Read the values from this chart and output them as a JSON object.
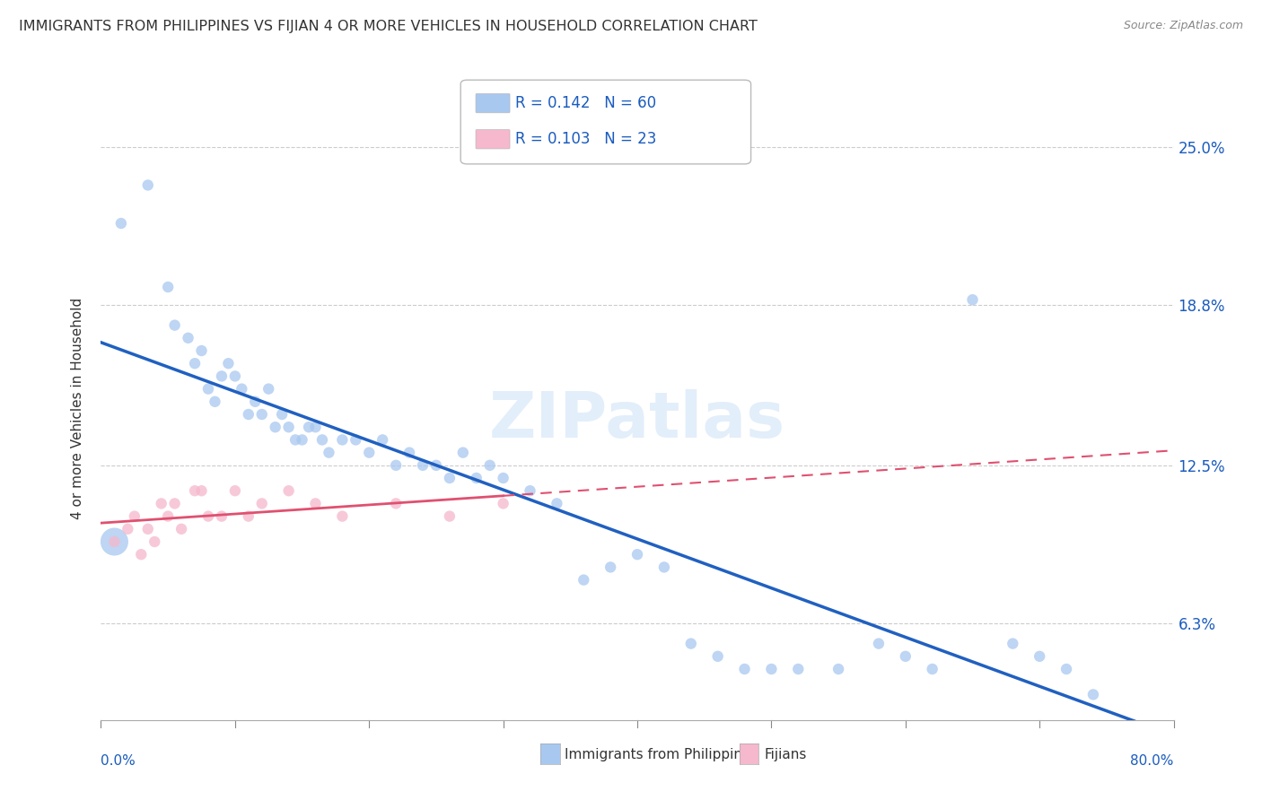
{
  "title": "IMMIGRANTS FROM PHILIPPINES VS FIJIAN 4 OR MORE VEHICLES IN HOUSEHOLD CORRELATION CHART",
  "source": "Source: ZipAtlas.com",
  "ylabel": "4 or more Vehicles in Household",
  "ytick_labels": [
    "6.3%",
    "12.5%",
    "18.8%",
    "25.0%"
  ],
  "ytick_values": [
    6.3,
    12.5,
    18.8,
    25.0
  ],
  "xlim": [
    0.0,
    80.0
  ],
  "ylim": [
    2.5,
    27.0
  ],
  "legend1_R": "0.142",
  "legend1_N": "60",
  "legend2_R": "0.103",
  "legend2_N": "23",
  "blue_color": "#a8c8f0",
  "pink_color": "#f5b8cc",
  "blue_line_color": "#2060c0",
  "pink_line_color": "#e05070",
  "watermark": "ZIPatlas",
  "phil_x": [
    1.5,
    3.5,
    5.0,
    5.5,
    6.5,
    7.0,
    7.5,
    8.0,
    8.5,
    9.0,
    9.5,
    10.0,
    10.5,
    11.0,
    11.5,
    12.0,
    12.5,
    13.0,
    13.5,
    14.0,
    14.5,
    15.0,
    15.5,
    16.0,
    16.5,
    17.0,
    18.0,
    19.0,
    20.0,
    21.0,
    22.0,
    23.0,
    24.0,
    25.0,
    26.0,
    27.0,
    28.0,
    29.0,
    30.0,
    32.0,
    34.0,
    36.0,
    38.0,
    40.0,
    42.0,
    44.0,
    46.0,
    48.0,
    50.0,
    52.0,
    55.0,
    58.0,
    60.0,
    62.0,
    65.0,
    68.0,
    70.0,
    72.0,
    74.0,
    1.0
  ],
  "phil_y": [
    22.0,
    23.5,
    19.5,
    18.0,
    17.5,
    16.5,
    17.0,
    15.5,
    15.0,
    16.0,
    16.5,
    16.0,
    15.5,
    14.5,
    15.0,
    14.5,
    15.5,
    14.0,
    14.5,
    14.0,
    13.5,
    13.5,
    14.0,
    14.0,
    13.5,
    13.0,
    13.5,
    13.5,
    13.0,
    13.5,
    12.5,
    13.0,
    12.5,
    12.5,
    12.0,
    13.0,
    12.0,
    12.5,
    12.0,
    11.5,
    11.0,
    8.0,
    8.5,
    9.0,
    8.5,
    5.5,
    5.0,
    4.5,
    4.5,
    4.5,
    4.5,
    5.5,
    5.0,
    4.5,
    19.0,
    5.5,
    5.0,
    4.5,
    3.5,
    9.5
  ],
  "phil_sizes": [
    80,
    80,
    80,
    80,
    80,
    80,
    80,
    80,
    80,
    80,
    80,
    80,
    80,
    80,
    80,
    80,
    80,
    80,
    80,
    80,
    80,
    80,
    80,
    80,
    80,
    80,
    80,
    80,
    80,
    80,
    80,
    80,
    80,
    80,
    80,
    80,
    80,
    80,
    80,
    80,
    80,
    80,
    80,
    80,
    80,
    80,
    80,
    80,
    80,
    80,
    80,
    80,
    80,
    80,
    80,
    80,
    80,
    80,
    80,
    500
  ],
  "fiji_x": [
    1.0,
    2.0,
    2.5,
    3.0,
    3.5,
    4.0,
    4.5,
    5.0,
    5.5,
    6.0,
    7.0,
    7.5,
    8.0,
    9.0,
    10.0,
    11.0,
    12.0,
    14.0,
    16.0,
    18.0,
    22.0,
    26.0,
    30.0
  ],
  "fiji_y": [
    9.5,
    10.0,
    10.5,
    9.0,
    10.0,
    9.5,
    11.0,
    10.5,
    11.0,
    10.0,
    11.5,
    11.5,
    10.5,
    10.5,
    11.5,
    10.5,
    11.0,
    11.5,
    11.0,
    10.5,
    11.0,
    10.5,
    11.0
  ],
  "fiji_sizes": [
    80,
    80,
    80,
    80,
    80,
    80,
    80,
    80,
    80,
    80,
    80,
    80,
    80,
    80,
    80,
    80,
    80,
    80,
    80,
    80,
    80,
    80,
    80
  ]
}
